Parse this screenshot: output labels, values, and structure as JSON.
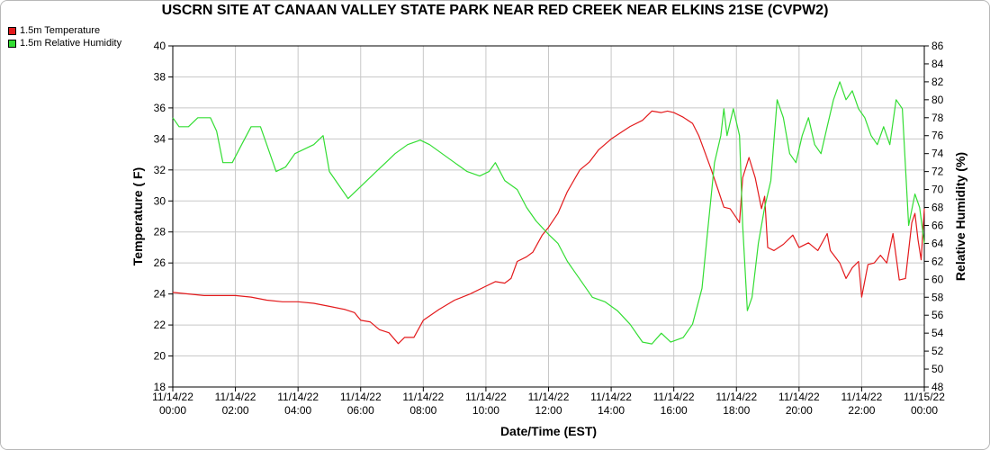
{
  "chart_data": {
    "type": "line",
    "title": "USCRN SITE AT CANAAN VALLEY STATE PARK NEAR RED CREEK NEAR ELKINS 21SE (CVPW2)",
    "xlabel": "Date/Time (EST)",
    "ylabel_left": "Temperature ( F)",
    "ylabel_right": "Relative Humidity (%)",
    "x_unit": "hours since 11/14/22 00:00",
    "x_ticks": [
      {
        "date": "11/14/22",
        "time": "00:00",
        "h": 0
      },
      {
        "date": "11/14/22",
        "time": "02:00",
        "h": 2
      },
      {
        "date": "11/14/22",
        "time": "04:00",
        "h": 4
      },
      {
        "date": "11/14/22",
        "time": "06:00",
        "h": 6
      },
      {
        "date": "11/14/22",
        "time": "08:00",
        "h": 8
      },
      {
        "date": "11/14/22",
        "time": "10:00",
        "h": 10
      },
      {
        "date": "11/14/22",
        "time": "12:00",
        "h": 12
      },
      {
        "date": "11/14/22",
        "time": "14:00",
        "h": 14
      },
      {
        "date": "11/14/22",
        "time": "16:00",
        "h": 16
      },
      {
        "date": "11/14/22",
        "time": "18:00",
        "h": 18
      },
      {
        "date": "11/14/22",
        "time": "20:00",
        "h": 20
      },
      {
        "date": "11/14/22",
        "time": "22:00",
        "h": 22
      },
      {
        "date": "11/15/22",
        "time": "00:00",
        "h": 24
      }
    ],
    "xlim": [
      0,
      24
    ],
    "ylim_left": [
      18,
      40
    ],
    "yticks_left": [
      18,
      20,
      22,
      24,
      26,
      28,
      30,
      32,
      34,
      36,
      38,
      40
    ],
    "ylim_right": [
      48,
      86
    ],
    "yticks_right": [
      48,
      50,
      52,
      54,
      56,
      58,
      60,
      62,
      64,
      66,
      68,
      70,
      72,
      74,
      76,
      78,
      80,
      82,
      84,
      86
    ],
    "grid": true,
    "legend_position": "top-left",
    "series": [
      {
        "name": "1.5m Temperature",
        "color": "#e31a1c",
        "axis": "left",
        "points": [
          [
            0,
            24.1
          ],
          [
            0.5,
            24.0
          ],
          [
            1,
            23.9
          ],
          [
            1.5,
            23.9
          ],
          [
            2,
            23.9
          ],
          [
            2.5,
            23.8
          ],
          [
            3,
            23.6
          ],
          [
            3.5,
            23.5
          ],
          [
            4,
            23.5
          ],
          [
            4.5,
            23.4
          ],
          [
            5,
            23.2
          ],
          [
            5.5,
            23.0
          ],
          [
            5.8,
            22.8
          ],
          [
            6,
            22.3
          ],
          [
            6.3,
            22.2
          ],
          [
            6.6,
            21.7
          ],
          [
            6.9,
            21.5
          ],
          [
            7.2,
            20.8
          ],
          [
            7.4,
            21.2
          ],
          [
            7.7,
            21.2
          ],
          [
            8,
            22.3
          ],
          [
            8.5,
            23.0
          ],
          [
            9,
            23.6
          ],
          [
            9.5,
            24.0
          ],
          [
            10,
            24.5
          ],
          [
            10.3,
            24.8
          ],
          [
            10.6,
            24.7
          ],
          [
            10.8,
            25.0
          ],
          [
            11,
            26.1
          ],
          [
            11.3,
            26.4
          ],
          [
            11.5,
            26.7
          ],
          [
            11.8,
            27.8
          ],
          [
            12,
            28.3
          ],
          [
            12.3,
            29.2
          ],
          [
            12.6,
            30.6
          ],
          [
            13,
            32.0
          ],
          [
            13.3,
            32.5
          ],
          [
            13.6,
            33.3
          ],
          [
            14,
            34.0
          ],
          [
            14.3,
            34.4
          ],
          [
            14.6,
            34.8
          ],
          [
            15,
            35.2
          ],
          [
            15.3,
            35.8
          ],
          [
            15.6,
            35.7
          ],
          [
            15.8,
            35.8
          ],
          [
            16,
            35.7
          ],
          [
            16.3,
            35.4
          ],
          [
            16.6,
            35.0
          ],
          [
            16.8,
            34.2
          ],
          [
            17,
            33.1
          ],
          [
            17.2,
            32.0
          ],
          [
            17.4,
            30.8
          ],
          [
            17.6,
            29.6
          ],
          [
            17.8,
            29.5
          ],
          [
            18,
            28.9
          ],
          [
            18.1,
            28.6
          ],
          [
            18.2,
            31.5
          ],
          [
            18.4,
            32.8
          ],
          [
            18.6,
            31.5
          ],
          [
            18.8,
            29.5
          ],
          [
            18.9,
            30.3
          ],
          [
            19,
            27.0
          ],
          [
            19.2,
            26.8
          ],
          [
            19.5,
            27.2
          ],
          [
            19.8,
            27.8
          ],
          [
            20,
            27.0
          ],
          [
            20.3,
            27.3
          ],
          [
            20.6,
            26.8
          ],
          [
            20.9,
            27.9
          ],
          [
            21,
            26.8
          ],
          [
            21.3,
            26.0
          ],
          [
            21.5,
            25.0
          ],
          [
            21.7,
            25.7
          ],
          [
            21.9,
            26.1
          ],
          [
            22,
            23.8
          ],
          [
            22.2,
            25.9
          ],
          [
            22.4,
            26.0
          ],
          [
            22.6,
            26.5
          ],
          [
            22.8,
            26.0
          ],
          [
            23,
            27.9
          ],
          [
            23.2,
            24.9
          ],
          [
            23.4,
            25.0
          ],
          [
            23.6,
            28.6
          ],
          [
            23.7,
            29.2
          ],
          [
            23.8,
            27.5
          ],
          [
            23.9,
            26.2
          ],
          [
            24,
            29.5
          ]
        ]
      },
      {
        "name": "1.5m Relative Humidity",
        "color": "#33dd33",
        "axis": "right",
        "points": [
          [
            0,
            78
          ],
          [
            0.2,
            77
          ],
          [
            0.5,
            77
          ],
          [
            0.8,
            78
          ],
          [
            1.2,
            78
          ],
          [
            1.4,
            76.5
          ],
          [
            1.6,
            73
          ],
          [
            1.9,
            73
          ],
          [
            2.2,
            75
          ],
          [
            2.5,
            77
          ],
          [
            2.8,
            77
          ],
          [
            3,
            75
          ],
          [
            3.3,
            72
          ],
          [
            3.6,
            72.5
          ],
          [
            3.9,
            74
          ],
          [
            4.2,
            74.5
          ],
          [
            4.5,
            75
          ],
          [
            4.8,
            76
          ],
          [
            5,
            72
          ],
          [
            5.3,
            70.5
          ],
          [
            5.6,
            69
          ],
          [
            5.9,
            70
          ],
          [
            6.2,
            71
          ],
          [
            6.5,
            72
          ],
          [
            6.8,
            73
          ],
          [
            7.1,
            74
          ],
          [
            7.5,
            75
          ],
          [
            7.9,
            75.5
          ],
          [
            8.2,
            75
          ],
          [
            8.6,
            74
          ],
          [
            9,
            73
          ],
          [
            9.4,
            72
          ],
          [
            9.8,
            71.5
          ],
          [
            10.1,
            72
          ],
          [
            10.3,
            73
          ],
          [
            10.6,
            71
          ],
          [
            11,
            70
          ],
          [
            11.3,
            68
          ],
          [
            11.6,
            66.5
          ],
          [
            12,
            65
          ],
          [
            12.3,
            64
          ],
          [
            12.6,
            62
          ],
          [
            13,
            60
          ],
          [
            13.4,
            58
          ],
          [
            13.8,
            57.5
          ],
          [
            14.2,
            56.5
          ],
          [
            14.6,
            55
          ],
          [
            15,
            53
          ],
          [
            15.3,
            52.8
          ],
          [
            15.6,
            54
          ],
          [
            15.9,
            53
          ],
          [
            16.3,
            53.5
          ],
          [
            16.6,
            55
          ],
          [
            16.9,
            59
          ],
          [
            17.1,
            66
          ],
          [
            17.3,
            73
          ],
          [
            17.5,
            76
          ],
          [
            17.6,
            79
          ],
          [
            17.7,
            76
          ],
          [
            17.9,
            79
          ],
          [
            18.1,
            76
          ],
          [
            18.2,
            66
          ],
          [
            18.35,
            56.5
          ],
          [
            18.5,
            58
          ],
          [
            18.7,
            64
          ],
          [
            18.9,
            68
          ],
          [
            19.1,
            71
          ],
          [
            19.3,
            80
          ],
          [
            19.5,
            78
          ],
          [
            19.7,
            74
          ],
          [
            19.9,
            73
          ],
          [
            20.1,
            76
          ],
          [
            20.3,
            78
          ],
          [
            20.5,
            75
          ],
          [
            20.7,
            74
          ],
          [
            20.9,
            77
          ],
          [
            21.1,
            80
          ],
          [
            21.3,
            82
          ],
          [
            21.5,
            80
          ],
          [
            21.7,
            81
          ],
          [
            21.9,
            79
          ],
          [
            22.1,
            78
          ],
          [
            22.3,
            76
          ],
          [
            22.5,
            75
          ],
          [
            22.7,
            77
          ],
          [
            22.9,
            75
          ],
          [
            23.1,
            80
          ],
          [
            23.3,
            79
          ],
          [
            23.5,
            66
          ],
          [
            23.7,
            69.5
          ],
          [
            23.85,
            68
          ],
          [
            24,
            64
          ]
        ]
      }
    ]
  }
}
